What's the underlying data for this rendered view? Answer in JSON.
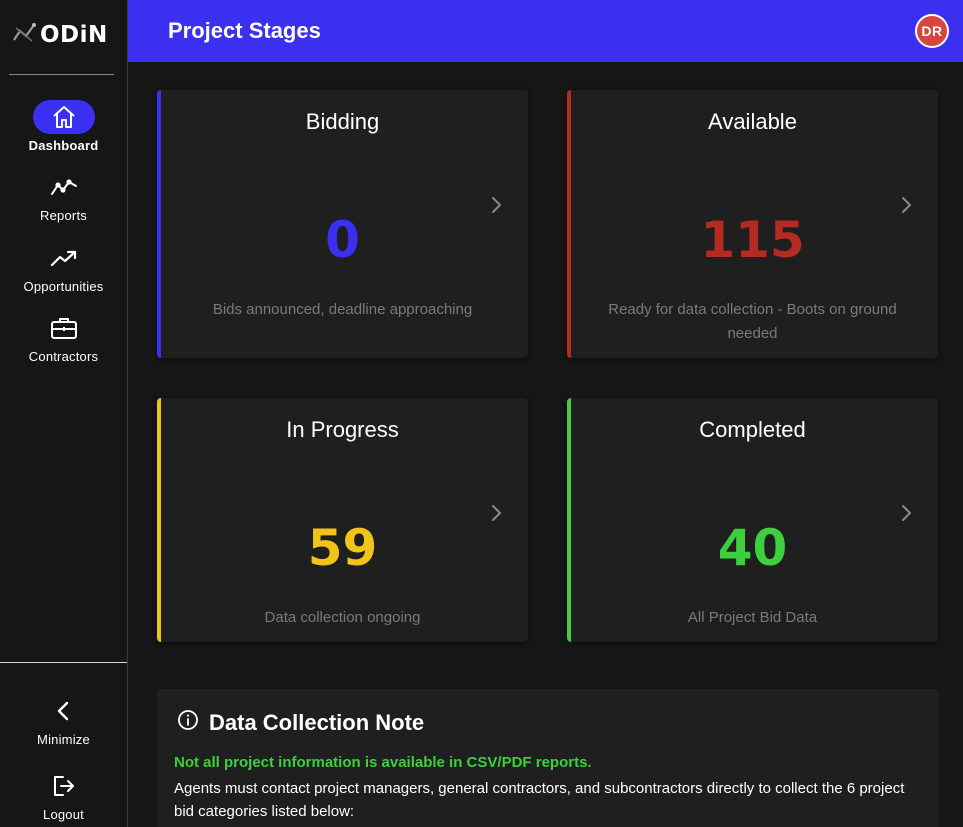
{
  "app": {
    "brand": "ODiN"
  },
  "header": {
    "title": "Project Stages",
    "avatar_initials": "DR"
  },
  "sidebar": {
    "items": [
      {
        "label": "Dashboard",
        "icon": "home-icon",
        "active": true
      },
      {
        "label": "Reports",
        "icon": "line-chart-icon",
        "active": false
      },
      {
        "label": "Opportunities",
        "icon": "trending-up-icon",
        "active": false
      },
      {
        "label": "Contractors",
        "icon": "briefcase-icon",
        "active": false
      }
    ],
    "bottom": [
      {
        "label": "Minimize",
        "icon": "chevron-left-icon"
      },
      {
        "label": "Logout",
        "icon": "logout-icon"
      }
    ]
  },
  "cards": [
    {
      "title": "Bidding",
      "value": "0",
      "description": "Bids announced, deadline approaching",
      "color": "#3b2ff0"
    },
    {
      "title": "Available",
      "value": "115",
      "description": "Ready for data collection - Boots on ground needed",
      "color": "#b52a22"
    },
    {
      "title": "In Progress",
      "value": "59",
      "description": "Data collection ongoing",
      "color": "#f0c419"
    },
    {
      "title": "Completed",
      "value": "40",
      "description": "All Project Bid Data",
      "color": "#3ecf3e"
    }
  ],
  "note": {
    "title": "Data Collection Note",
    "warning": "Not all project information is available in CSV/PDF reports.",
    "body": "Agents must contact project managers, general contractors, and subcontractors directly to collect the 6 project bid categories listed below:"
  },
  "colors": {
    "accent": "#3b2ff0",
    "avatar": "#d9443f",
    "background": "#161616",
    "card": "#1f1f1f"
  }
}
